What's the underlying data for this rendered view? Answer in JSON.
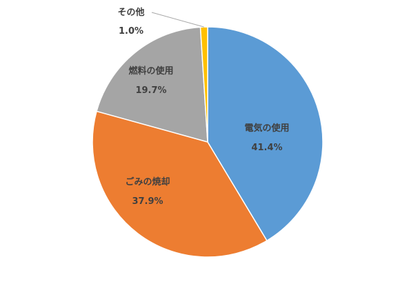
{
  "chart_data": {
    "type": "pie",
    "title": "",
    "start_angle_deg": 0,
    "direction": "clockwise",
    "slices": [
      {
        "name": "電気の使用",
        "value": 41.4,
        "label": "41.4%",
        "color": "#5B9BD5"
      },
      {
        "name": "ごみの焼却",
        "value": 37.9,
        "label": "37.9%",
        "color": "#ED7D31"
      },
      {
        "name": "燃料の使用",
        "value": 19.7,
        "label": "19.7%",
        "color": "#A5A5A5"
      },
      {
        "name": "その他",
        "value": 1.0,
        "label": "1.0%",
        "color": "#FFC000"
      }
    ],
    "legend": "none"
  }
}
